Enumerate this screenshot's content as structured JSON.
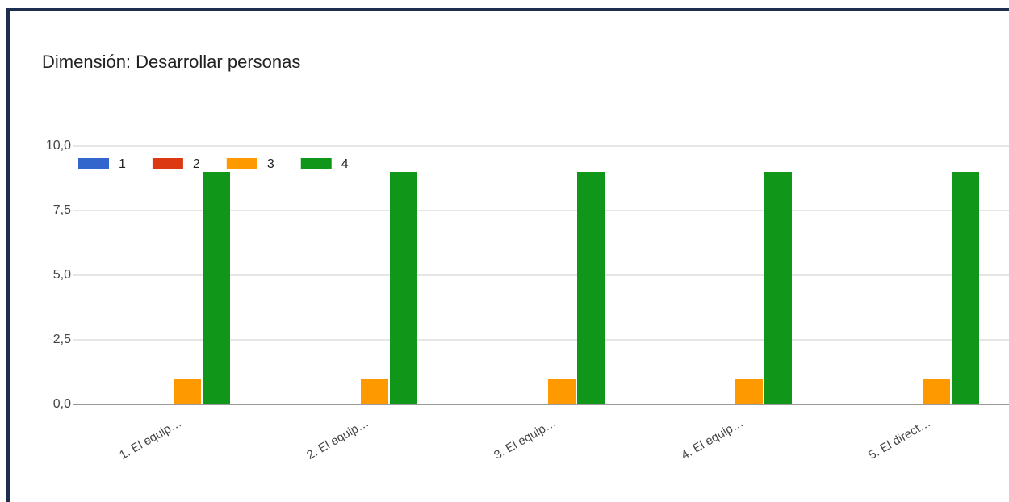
{
  "chart_data": {
    "type": "bar",
    "title": "Dimensión: Desarrollar personas",
    "categories": [
      "1. El equip…",
      "2. El equip…",
      "3. El equip…",
      "4. El equip…",
      "5. El direct…"
    ],
    "series": [
      {
        "name": "1",
        "color": "#3366cc",
        "values": [
          0,
          0,
          0,
          0,
          0
        ]
      },
      {
        "name": "2",
        "color": "#dc3912",
        "values": [
          0,
          0,
          0,
          0,
          0
        ]
      },
      {
        "name": "3",
        "color": "#ff9900",
        "values": [
          1,
          1,
          1,
          1,
          1
        ]
      },
      {
        "name": "4",
        "color": "#109618",
        "values": [
          9,
          9,
          9,
          9,
          9
        ]
      }
    ],
    "ylim": [
      0,
      10
    ],
    "yticks": [
      {
        "value": 0,
        "label": "0,0"
      },
      {
        "value": 2.5,
        "label": "2,5"
      },
      {
        "value": 5,
        "label": "5,0"
      },
      {
        "value": 7.5,
        "label": "7,5"
      },
      {
        "value": 10,
        "label": "10,0"
      }
    ],
    "grid": true,
    "legend": "top-left"
  }
}
